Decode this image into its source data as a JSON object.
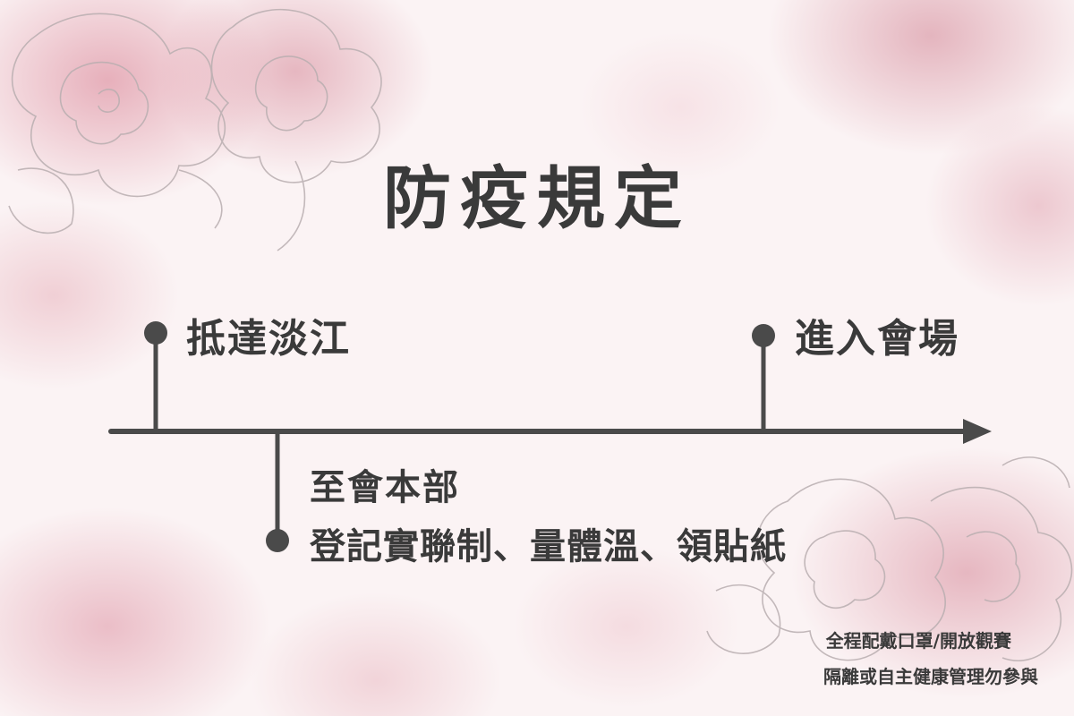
{
  "title": "防疫規定",
  "timeline": {
    "steps": [
      {
        "label": "抵達淡江"
      },
      {
        "label": "至會本部",
        "detail": "登記實聯制、量體溫、領貼紙"
      },
      {
        "label": "進入會場"
      }
    ]
  },
  "notes": [
    "全程配戴口罩/開放觀賽",
    "隔離或自主健康管理勿參與"
  ],
  "colors": {
    "ink": "#3a3a3a",
    "wash": "#d6788c",
    "background": "#fbf3f4"
  },
  "decorations": [
    "peony-outline-top-left",
    "peony-outline-bottom-right"
  ]
}
